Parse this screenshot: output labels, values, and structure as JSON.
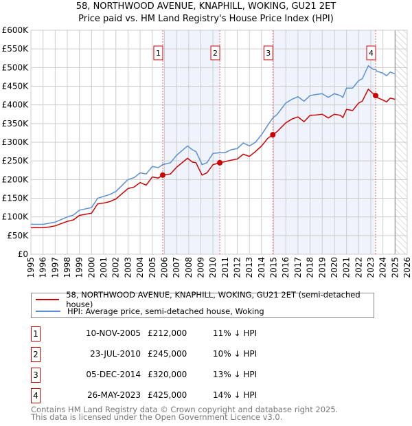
{
  "chart_data": {
    "type": "line",
    "title": "58, NORTHWOOD AVENUE, KNAPHILL, WOKING, GU21 2ET",
    "subtitle": "Price paid vs. HM Land Registry's House Price Index (HPI)",
    "xlim": [
      1995,
      2026
    ],
    "ylim": [
      0,
      600000
    ],
    "x_ticks": [
      "1995",
      "1996",
      "1997",
      "1998",
      "1999",
      "2000",
      "2001",
      "2002",
      "2003",
      "2004",
      "2005",
      "2006",
      "2007",
      "2008",
      "2009",
      "2010",
      "2011",
      "2012",
      "2013",
      "2014",
      "2015",
      "2016",
      "2017",
      "2018",
      "2019",
      "2020",
      "2021",
      "2022",
      "2023",
      "2024",
      "2025",
      "2026"
    ],
    "y_ticks": [
      {
        "v": 0,
        "l": "£0"
      },
      {
        "v": 50000,
        "l": "£50K"
      },
      {
        "v": 100000,
        "l": "£100K"
      },
      {
        "v": 150000,
        "l": "£150K"
      },
      {
        "v": 200000,
        "l": "£200K"
      },
      {
        "v": 250000,
        "l": "£250K"
      },
      {
        "v": 300000,
        "l": "£300K"
      },
      {
        "v": 350000,
        "l": "£350K"
      },
      {
        "v": 400000,
        "l": "£400K"
      },
      {
        "v": 450000,
        "l": "£450K"
      },
      {
        "v": 500000,
        "l": "£500K"
      },
      {
        "v": 550000,
        "l": "£550K"
      },
      {
        "v": 600000,
        "l": "£600K"
      }
    ],
    "x": [
      1995,
      1996,
      1996.5,
      1997,
      1998,
      1998.5,
      1999,
      2000,
      2000.5,
      2001,
      2001.5,
      2002,
      2003,
      2003.5,
      2004,
      2004.5,
      2005,
      2005.5,
      2005.86,
      2006.5,
      2007,
      2007.9,
      2008.3,
      2008.6,
      2009.1,
      2009.5,
      2010,
      2010.56,
      2011,
      2011.5,
      2012,
      2012.5,
      2013,
      2013.5,
      2014,
      2014.5,
      2014.93,
      2015.3,
      2016,
      2016.5,
      2017,
      2017.5,
      2018,
      2018.5,
      2019,
      2019.5,
      2020,
      2020.5,
      2020.7,
      2021,
      2021.5,
      2022,
      2022.3,
      2022.8,
      2023.2,
      2023.4,
      2023.5,
      2024,
      2024.3,
      2024.6,
      2025
    ],
    "series": [
      {
        "name": "58, NORTHWOOD AVENUE, KNAPHILL, WOKING, GU21 2ET (semi-detached house)",
        "color": "#cc0000",
        "values": [
          71,
          71,
          73,
          76,
          88,
          92,
          104,
          110,
          135,
          137,
          141,
          148,
          176,
          180,
          192,
          185,
          207,
          204,
          212,
          215,
          233,
          257,
          247,
          245,
          212,
          218,
          240,
          245,
          248,
          252,
          255,
          268,
          262,
          275,
          290,
          310,
          320,
          329,
          352,
          362,
          368,
          355,
          372,
          373,
          375,
          365,
          375,
          372,
          366,
          388,
          385,
          405,
          410,
          442,
          430,
          425,
          420,
          413,
          408,
          418,
          415
        ]
      },
      {
        "name": "HPI: Average price, semi-detached house, Woking",
        "color": "#5b8fd4",
        "values": [
          80,
          80,
          83,
          86,
          100,
          105,
          118,
          125,
          150,
          155,
          160,
          168,
          200,
          205,
          218,
          215,
          235,
          232,
          240,
          245,
          265,
          290,
          280,
          275,
          240,
          245,
          270,
          272,
          272,
          280,
          283,
          298,
          290,
          300,
          320,
          345,
          365,
          375,
          405,
          415,
          422,
          410,
          425,
          428,
          430,
          420,
          430,
          425,
          420,
          445,
          445,
          465,
          470,
          505,
          495,
          495,
          490,
          485,
          478,
          488,
          483
        ]
      }
    ],
    "value_unit": "thousands GBP",
    "sales": [
      {
        "n": "1",
        "x": 2005.86,
        "date": "10-NOV-2005",
        "price": "£212,000",
        "value": 212,
        "hpi": "11% ↓ HPI"
      },
      {
        "n": "2",
        "x": 2010.56,
        "date": "23-JUL-2010",
        "price": "£245,000",
        "value": 245,
        "hpi": "10% ↓ HPI"
      },
      {
        "n": "3",
        "x": 2014.93,
        "date": "05-DEC-2014",
        "price": "£320,000",
        "value": 320,
        "hpi": "13% ↓ HPI"
      },
      {
        "n": "4",
        "x": 2023.4,
        "date": "26-MAY-2023",
        "price": "£425,000",
        "value": 425,
        "hpi": "14% ↓ HPI"
      }
    ],
    "shaded_ranges": [
      [
        2005.86,
        2010.56
      ],
      [
        2014.93,
        2023.4
      ]
    ],
    "forecast_hatch_from": 2025,
    "grid": true,
    "legend_placement": "below"
  },
  "footer": {
    "line1": "Contains HM Land Registry data © Crown copyright and database right 2025.",
    "line2": "This data is licensed under the Open Government Licence v3.0."
  }
}
